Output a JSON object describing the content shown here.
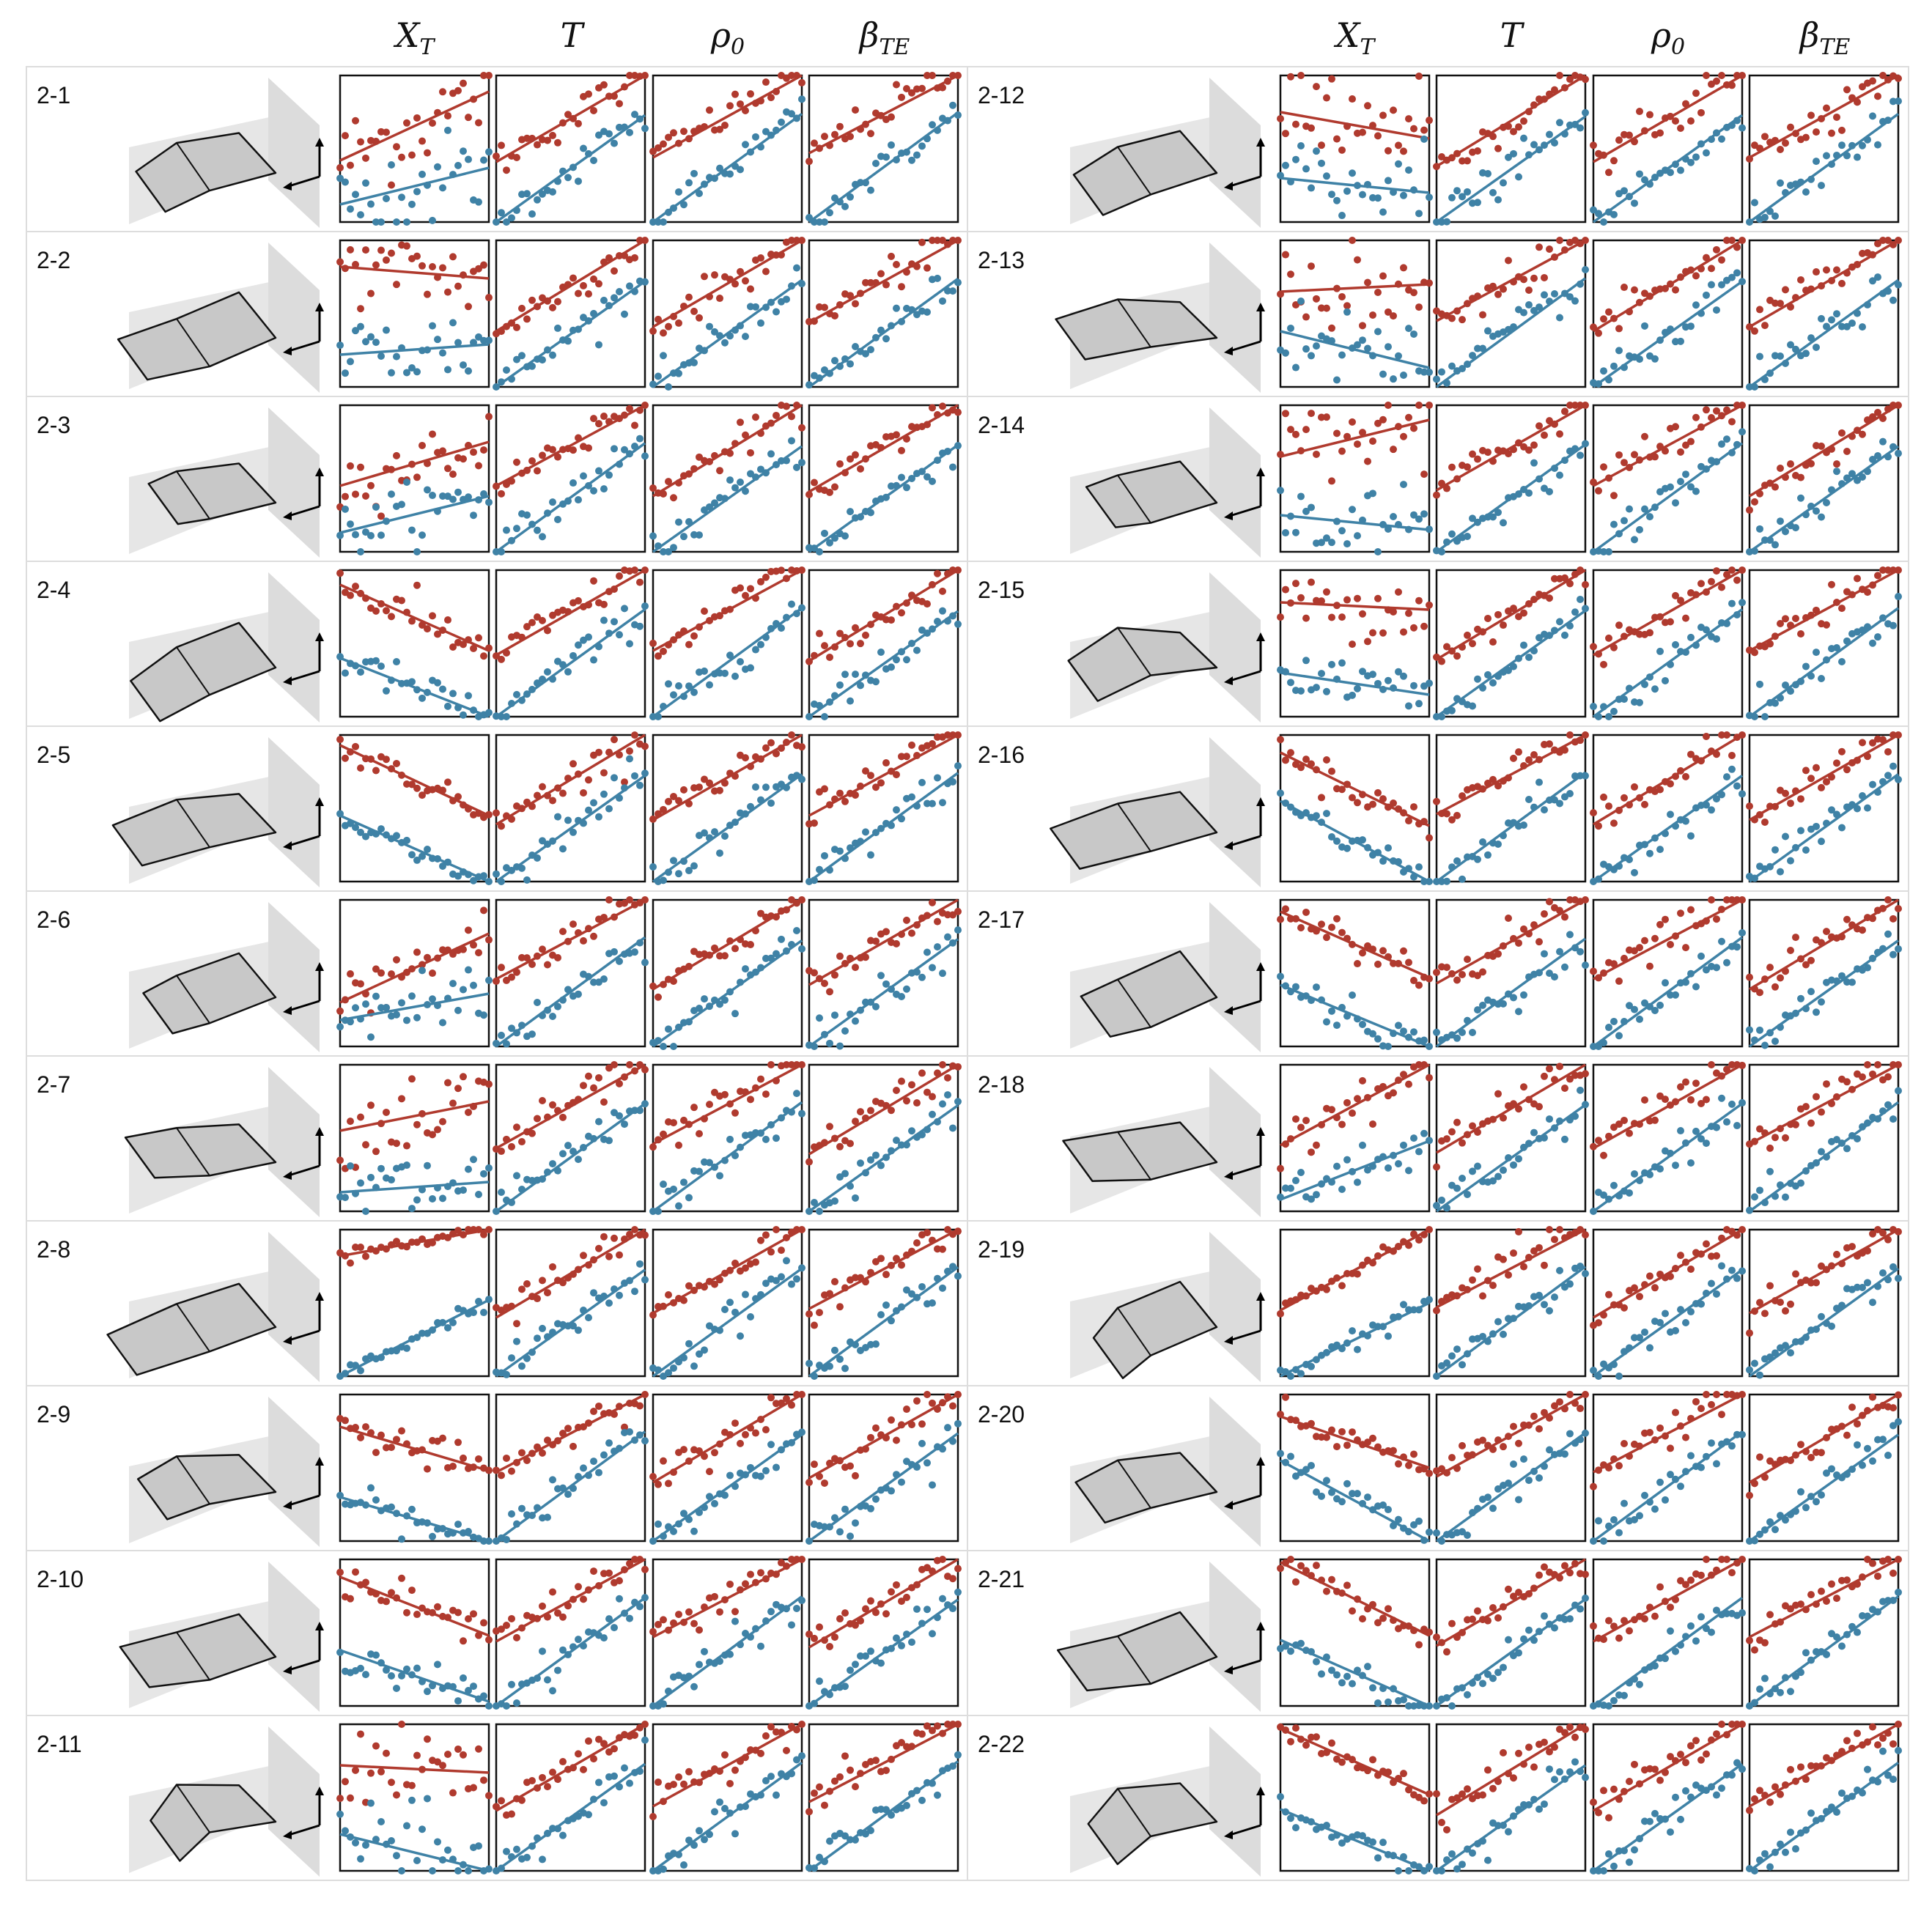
{
  "columns": [
    {
      "sym": "X",
      "sub": "T"
    },
    {
      "sym": "T",
      "sub": ""
    },
    {
      "sym": "ρ",
      "sub": "0"
    },
    {
      "sym": "β",
      "sub": "TE"
    }
  ],
  "colors": {
    "series_a": "#b03a2e",
    "series_b": "#3f82a6",
    "panel_border": "#dddddd"
  },
  "chart_data": {
    "type": "scatter",
    "rows": [
      {
        "label": "2-1",
        "shape": "w1",
        "xt": [
          [
            0.42,
            0.47
          ],
          [
            0.12,
            0.25
          ],
          0.16,
          0.16
        ]
      },
      {
        "label": "2-2",
        "shape": "w2",
        "xt": [
          [
            0.82,
            -0.08
          ],
          [
            0.22,
            0.07
          ],
          0.12,
          0.14
        ]
      },
      {
        "label": "2-3",
        "shape": "w3",
        "xt": [
          [
            0.45,
            0.3
          ],
          [
            0.13,
            0.25
          ],
          0.1,
          0.1
        ]
      },
      {
        "label": "2-4",
        "shape": "w4",
        "xt": [
          [
            0.9,
            -0.45
          ],
          [
            0.4,
            -0.4
          ],
          0.07,
          0.06
        ]
      },
      {
        "label": "2-5",
        "shape": "w5",
        "xt": [
          [
            0.93,
            -0.48
          ],
          [
            0.45,
            -0.47
          ],
          0.04,
          0.03
        ]
      },
      {
        "label": "2-6",
        "shape": "w6",
        "xt": [
          [
            0.3,
            0.47
          ],
          [
            0.18,
            0.18
          ],
          0.1,
          0.14
        ]
      },
      {
        "label": "2-7",
        "shape": "w7",
        "xt": [
          [
            0.55,
            0.2
          ],
          [
            0.13,
            0.07
          ],
          0.14,
          0.14
        ]
      },
      {
        "label": "2-8",
        "shape": "w8",
        "xt": [
          [
            0.82,
            0.18
          ],
          [
            0.0,
            0.52
          ],
          0.03,
          0.03
        ]
      },
      {
        "label": "2-9",
        "shape": "w9",
        "xt": [
          [
            0.78,
            -0.3
          ],
          [
            0.3,
            -0.33
          ],
          0.06,
          0.05
        ]
      },
      {
        "label": "2-10",
        "shape": "w10",
        "xt": [
          [
            0.88,
            -0.4
          ],
          [
            0.38,
            -0.35
          ],
          0.06,
          0.06
        ]
      },
      {
        "label": "2-11",
        "shape": "w11",
        "xt": [
          [
            0.72,
            -0.05
          ],
          [
            0.25,
            -0.25
          ],
          0.15,
          0.15
        ]
      },
      {
        "label": "2-12",
        "shape": "w12",
        "xt": [
          [
            0.75,
            -0.18
          ],
          [
            0.3,
            -0.1
          ],
          0.16,
          0.16
        ]
      },
      {
        "label": "2-13",
        "shape": "w13",
        "xt": [
          [
            0.65,
            0.05
          ],
          [
            0.38,
            -0.25
          ],
          0.16,
          0.16
        ]
      },
      {
        "label": "2-14",
        "shape": "w14",
        "xt": [
          [
            0.65,
            0.25
          ],
          [
            0.25,
            -0.1
          ],
          0.14,
          0.14
        ]
      },
      {
        "label": "2-15",
        "shape": "w15",
        "xt": [
          [
            0.78,
            -0.05
          ],
          [
            0.3,
            -0.15
          ],
          0.1,
          0.1
        ]
      },
      {
        "label": "2-16",
        "shape": "w16",
        "xt": [
          [
            0.88,
            -0.5
          ],
          [
            0.55,
            -0.55
          ],
          0.05,
          0.05
        ]
      },
      {
        "label": "2-17",
        "shape": "w17",
        "xt": [
          [
            0.92,
            -0.45
          ],
          [
            0.42,
            -0.45
          ],
          0.08,
          0.07
        ]
      },
      {
        "label": "2-18",
        "shape": "w18",
        "xt": [
          [
            0.45,
            0.55
          ],
          [
            0.08,
            0.4
          ],
          0.08,
          0.08
        ]
      },
      {
        "label": "2-19",
        "shape": "w19",
        "xt": [
          [
            0.45,
            0.55
          ],
          [
            0.0,
            0.5
          ],
          0.03,
          0.03
        ]
      },
      {
        "label": "2-20",
        "shape": "w20",
        "xt": [
          [
            0.85,
            -0.35
          ],
          [
            0.55,
            -0.55
          ],
          0.04,
          0.05
        ]
      },
      {
        "label": "2-21",
        "shape": "w21",
        "xt": [
          [
            0.98,
            -0.5
          ],
          [
            0.45,
            -0.5
          ],
          0.05,
          0.05
        ]
      },
      {
        "label": "2-22",
        "shape": "w22",
        "xt": [
          [
            0.97,
            -0.45
          ],
          [
            0.42,
            -0.45
          ],
          0.04,
          0.04
        ]
      }
    ]
  }
}
